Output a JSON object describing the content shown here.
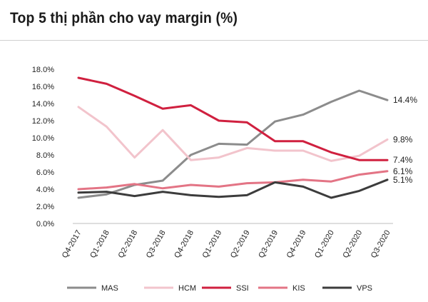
{
  "page": {
    "title": "Top 5 thị phần cho vay margin (%)"
  },
  "chart_data": {
    "type": "line",
    "title": "Top 5 thị phần cho vay margin (%)",
    "xlabel": "",
    "ylabel": "",
    "ylim": [
      0,
      18
    ],
    "ytick_step": 2,
    "yticks": [
      "0.0%",
      "2.0%",
      "4.0%",
      "6.0%",
      "8.0%",
      "10.0%",
      "12.0%",
      "14.0%",
      "16.0%",
      "18.0%"
    ],
    "categories": [
      "Q4-2017",
      "Q1-2018",
      "Q2-2018",
      "Q3-2018",
      "Q4-2018",
      "Q1-2019",
      "Q2-2019",
      "Q3-2019",
      "Q4-2019",
      "Q1-2020",
      "Q2-2020",
      "Q3-2020"
    ],
    "legend_position": "bottom",
    "series": [
      {
        "name": "MAS",
        "color": "#8c8c8c",
        "values": [
          3.0,
          3.4,
          4.5,
          5.0,
          8.0,
          9.3,
          9.2,
          11.9,
          12.7,
          14.2,
          15.5,
          14.4
        ],
        "end_label": "14.4%"
      },
      {
        "name": "HCM",
        "color": "#f2c4cc",
        "values": [
          13.6,
          11.3,
          7.7,
          10.9,
          7.4,
          7.7,
          8.8,
          8.5,
          8.5,
          7.3,
          7.9,
          9.8
        ],
        "end_label": "9.8%"
      },
      {
        "name": "SSI",
        "color": "#d0203f",
        "values": [
          17.0,
          16.3,
          14.9,
          13.4,
          13.8,
          12.0,
          11.8,
          9.6,
          9.6,
          8.3,
          7.4,
          7.4
        ],
        "end_label": "7.4%"
      },
      {
        "name": "KIS",
        "color": "#e37485",
        "values": [
          4.0,
          4.2,
          4.6,
          4.1,
          4.5,
          4.3,
          4.7,
          4.8,
          5.1,
          4.9,
          5.7,
          6.1
        ],
        "end_label": "6.1%"
      },
      {
        "name": "VPS",
        "color": "#3c3c3c",
        "values": [
          3.6,
          3.7,
          3.2,
          3.7,
          3.3,
          3.1,
          3.3,
          4.8,
          4.3,
          3.0,
          3.8,
          5.1
        ],
        "end_label": "5.1%"
      }
    ]
  }
}
